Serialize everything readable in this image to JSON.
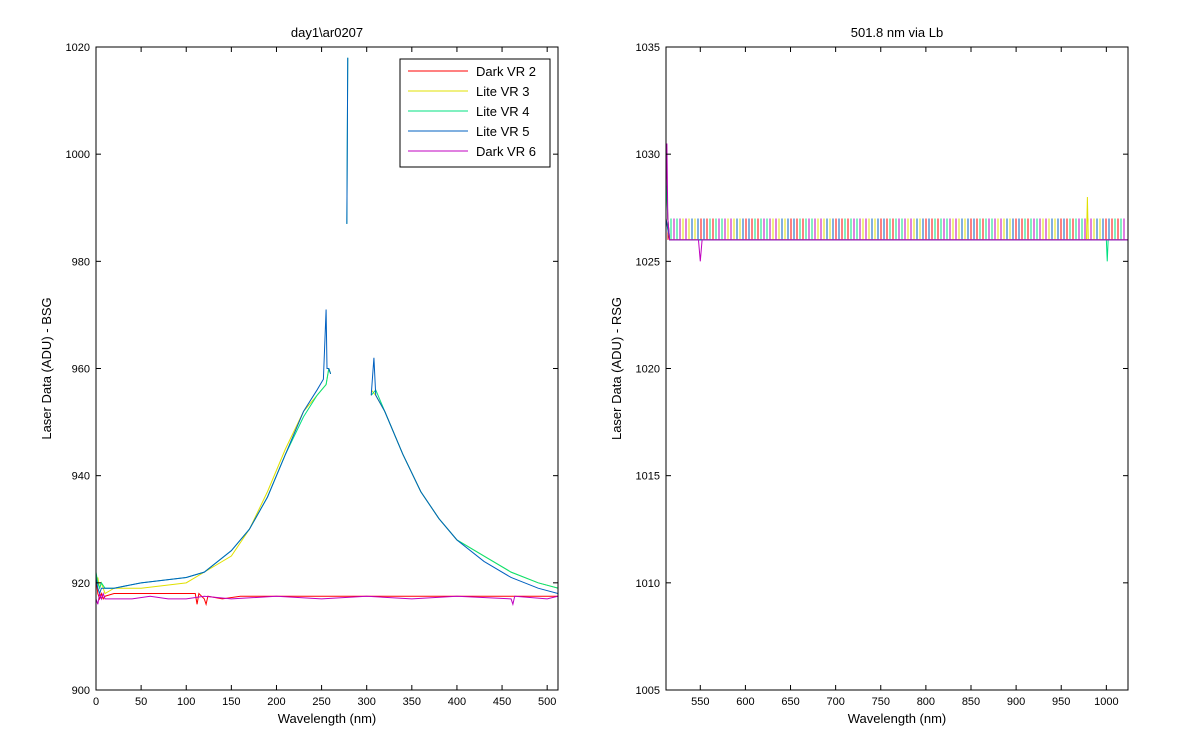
{
  "chart_data": [
    {
      "type": "line",
      "title": "day1\\ar0207",
      "xlabel": "Wavelength (nm)",
      "ylabel": "Laser Data (ADU) - BSG",
      "xlim": [
        0,
        512
      ],
      "ylim": [
        900,
        1020
      ],
      "xticks": [
        0,
        50,
        100,
        150,
        200,
        250,
        300,
        350,
        400,
        450,
        500
      ],
      "yticks": [
        900,
        920,
        940,
        960,
        980,
        1000,
        1020
      ],
      "legend_position": "top-right",
      "series": [
        {
          "name": "Dark VR 2",
          "color": "#ff0000",
          "x": [
            0,
            2,
            4,
            6,
            8,
            10,
            20,
            40,
            60,
            80,
            100,
            110,
            112,
            114,
            120,
            122,
            124,
            140,
            160,
            200,
            250,
            300,
            350,
            400,
            450,
            500,
            512
          ],
          "y": [
            921,
            918,
            917,
            918,
            917,
            917.5,
            918,
            918,
            918,
            918,
            918,
            918,
            916,
            918,
            917,
            916,
            917.5,
            917,
            917.5,
            917.5,
            917.5,
            917.5,
            917.5,
            917.5,
            917.5,
            917.5,
            917.5
          ]
        },
        {
          "name": "Lite VR 3",
          "color": "#e0e000",
          "x": [
            0,
            2,
            4,
            6,
            10,
            20,
            50,
            100,
            120,
            150,
            170,
            190,
            210,
            230,
            245,
            255,
            258,
            260,
            300,
            305,
            310,
            320,
            340,
            360,
            380,
            400,
            430,
            460,
            490,
            512
          ],
          "y": [
            920,
            921,
            919,
            920,
            918,
            919,
            919,
            920,
            922,
            925,
            930,
            937,
            945,
            952,
            955,
            957,
            960,
            959,
            null,
            956,
            955,
            952,
            944,
            937,
            932,
            928,
            925,
            922,
            920,
            919
          ]
        },
        {
          "name": "Lite VR 4",
          "color": "#00e080",
          "x": [
            0,
            2,
            4,
            6,
            10,
            20,
            50,
            100,
            120,
            150,
            170,
            190,
            210,
            230,
            245,
            255,
            258,
            260,
            277,
            278,
            279,
            300,
            305,
            310,
            320,
            340,
            360,
            380,
            400,
            430,
            460,
            490,
            512
          ],
          "y": [
            922,
            920,
            919,
            920,
            919,
            919,
            920,
            921,
            922,
            926,
            930,
            936,
            944,
            951,
            955,
            957,
            960,
            959,
            null,
            987,
            1018,
            null,
            955,
            956,
            952,
            944,
            937,
            932,
            928,
            925,
            922,
            920,
            919
          ]
        },
        {
          "name": "Lite VR 5",
          "color": "#0060c0",
          "x": [
            0,
            2,
            4,
            6,
            10,
            20,
            50,
            100,
            120,
            150,
            170,
            190,
            210,
            230,
            245,
            252,
            255,
            256,
            258,
            260,
            277,
            278,
            279,
            300,
            305,
            308,
            310,
            320,
            340,
            360,
            380,
            400,
            430,
            460,
            490,
            512
          ],
          "y": [
            921,
            919,
            918,
            919,
            919,
            919,
            920,
            921,
            922,
            926,
            930,
            936,
            944,
            952,
            956,
            958,
            971,
            960,
            960,
            959,
            null,
            987,
            1018,
            null,
            955,
            962,
            955,
            952,
            944,
            937,
            932,
            928,
            924,
            921,
            919,
            918
          ]
        },
        {
          "name": "Dark VR 6",
          "color": "#c000c0",
          "x": [
            0,
            2,
            4,
            6,
            8,
            10,
            20,
            40,
            60,
            80,
            100,
            120,
            150,
            200,
            250,
            300,
            350,
            400,
            460,
            462,
            464,
            500,
            512
          ],
          "y": [
            917,
            916,
            918,
            917,
            918,
            917,
            917,
            917,
            917.5,
            917,
            917,
            917.5,
            917,
            917.5,
            917,
            917.5,
            917,
            917.5,
            917,
            916,
            917.5,
            917,
            917.5
          ]
        }
      ]
    },
    {
      "type": "line",
      "title": "501.8 nm via Lb",
      "xlabel": "Wavelength (nm)",
      "ylabel": "Laser Data (ADU) - RSG",
      "xlim": [
        512,
        1024
      ],
      "ylim": [
        1005,
        1035
      ],
      "xticks": [
        550,
        600,
        650,
        700,
        750,
        800,
        850,
        900,
        950,
        1000
      ],
      "yticks": [
        1005,
        1010,
        1015,
        1020,
        1025,
        1030,
        1035
      ],
      "series": [
        {
          "color": "#ff0000",
          "x": [
            512,
            513,
            514,
            516,
            520,
            600,
            700,
            800,
            900,
            1000,
            1024
          ],
          "y": [
            1028,
            1028.5,
            1027,
            1026,
            1026,
            1026,
            1026,
            1026,
            1026,
            1026,
            1026
          ]
        },
        {
          "color": "#e0e000",
          "x": [
            512,
            514,
            516,
            600,
            700,
            800,
            900,
            978,
            979,
            980,
            1000,
            1024
          ],
          "y": [
            1027,
            1026.5,
            1026,
            1026,
            1026,
            1026,
            1026,
            1026,
            1028,
            1026,
            1026,
            1026
          ]
        },
        {
          "color": "#00e080",
          "x": [
            512,
            514,
            516,
            600,
            700,
            800,
            900,
            1000,
            1001,
            1002,
            1024
          ],
          "y": [
            1029,
            1027,
            1026,
            1026,
            1026,
            1026,
            1026,
            1026,
            1025,
            1026,
            1026
          ]
        },
        {
          "color": "#0060c0",
          "x": [
            512,
            514,
            516,
            600,
            700,
            800,
            900,
            1000,
            1024
          ],
          "y": [
            1027,
            1026.5,
            1026,
            1026,
            1026,
            1026,
            1026,
            1026,
            1026
          ]
        },
        {
          "color": "#c000c0",
          "x": [
            512,
            513,
            514,
            516,
            548,
            550,
            552,
            600,
            700,
            800,
            900,
            1000,
            1024
          ],
          "y": [
            1028,
            1030.5,
            1027,
            1026,
            1026,
            1025,
            1026,
            1026,
            1026,
            1026,
            1026,
            1026,
            1026
          ]
        }
      ]
    }
  ]
}
